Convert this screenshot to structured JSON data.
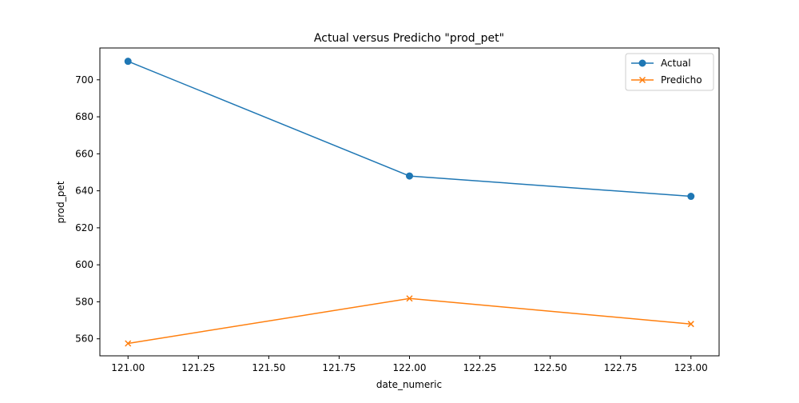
{
  "chart_data": {
    "type": "line",
    "title": "Actual versus Predicho \"prod_pet\"",
    "xlabel": "date_numeric",
    "ylabel": "prod_pet",
    "x": [
      121.0,
      122.0,
      123.0
    ],
    "series": [
      {
        "name": "Actual",
        "values": [
          710,
          648,
          637
        ],
        "color": "#1f77b4",
        "marker": "circle"
      },
      {
        "name": "Predicho",
        "values": [
          557.5,
          581.8,
          568
        ],
        "color": "#ff7f0e",
        "marker": "x"
      }
    ],
    "xlim": [
      120.9,
      123.1
    ],
    "ylim": [
      550.8,
      717.2
    ],
    "xticks": [
      121.0,
      121.25,
      121.5,
      121.75,
      122.0,
      122.25,
      122.5,
      122.75,
      123.0
    ],
    "xtick_labels": [
      "121.00",
      "121.25",
      "121.50",
      "121.75",
      "122.00",
      "122.25",
      "122.50",
      "122.75",
      "123.00"
    ],
    "yticks": [
      560,
      580,
      600,
      620,
      640,
      660,
      680,
      700
    ],
    "ytick_labels": [
      "560",
      "580",
      "600",
      "620",
      "640",
      "660",
      "680",
      "700"
    ],
    "grid": false,
    "legend_position": "top-right"
  }
}
